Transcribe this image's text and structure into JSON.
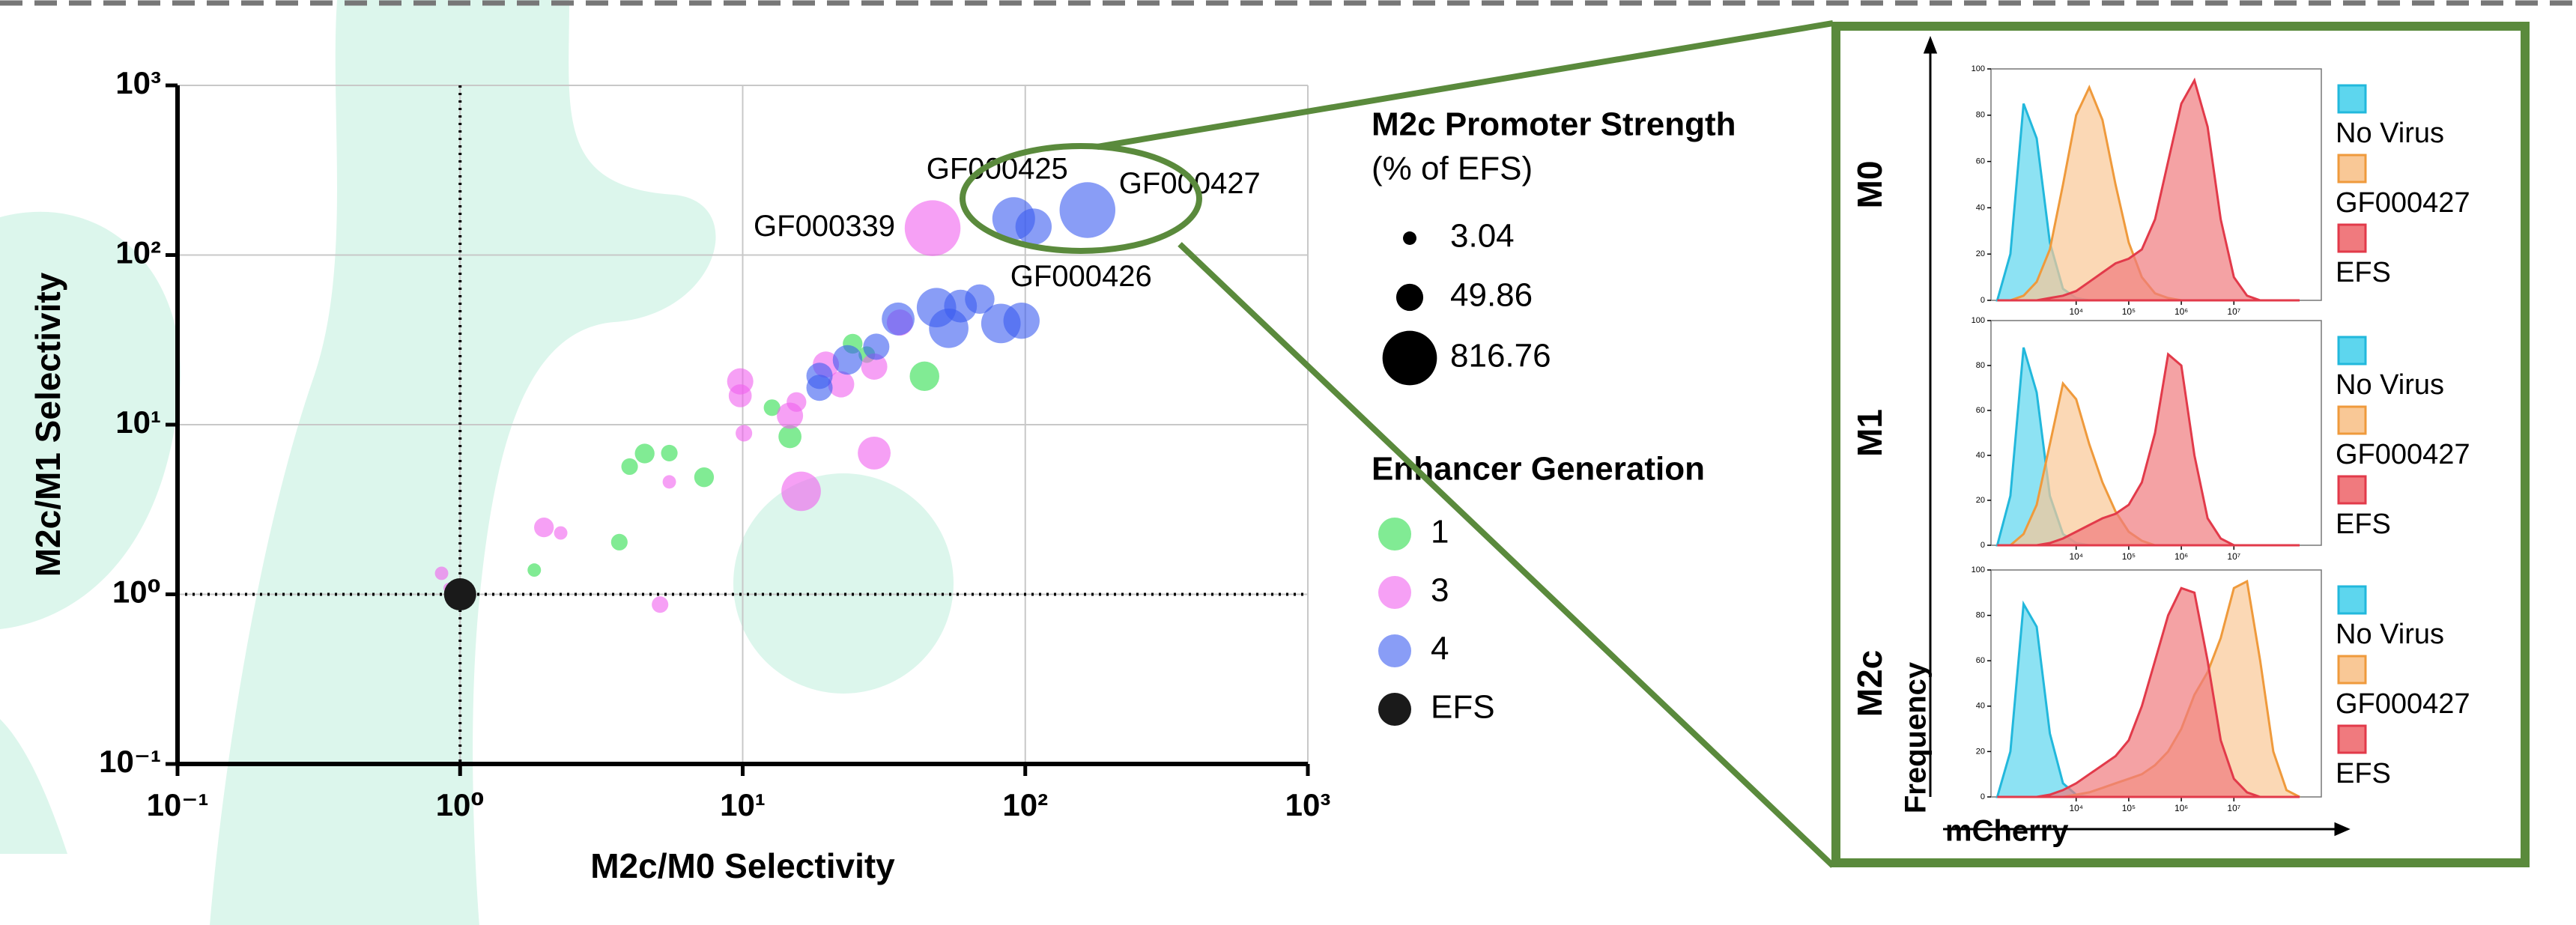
{
  "chart_data": [
    {
      "type": "scatter",
      "xlabel": "M2c/M0 Selectivity",
      "ylabel": "M2c/M1 Selectivity",
      "xscale": "log",
      "yscale": "log",
      "grid": true,
      "xlim": [
        0.1,
        1000
      ],
      "ylim": [
        0.1,
        1000
      ],
      "xticks": [
        {
          "value": 0.1,
          "label": "10⁻¹"
        },
        {
          "value": 1,
          "label": "10⁰"
        },
        {
          "value": 10,
          "label": "10¹"
        },
        {
          "value": 100,
          "label": "10²"
        },
        {
          "value": 1000,
          "label": "10³"
        }
      ],
      "yticks": [
        {
          "value": 0.1,
          "label": "10⁻¹"
        },
        {
          "value": 1,
          "label": "10⁰"
        },
        {
          "value": 10,
          "label": "10¹"
        },
        {
          "value": 100,
          "label": "10²"
        },
        {
          "value": 1000,
          "label": "10³"
        }
      ],
      "ref_lines": {
        "x": 1,
        "y": 1
      },
      "size_legend": {
        "title": "M2c Promoter Strength",
        "subtitle": "(% of EFS)",
        "values": [
          3.04,
          49.86,
          816.76
        ]
      },
      "legend_title": "Enhancer Generation",
      "series": [
        {
          "name": "1",
          "color": "#3ee05a",
          "opacity": 0.65,
          "label_color": "#20a040",
          "x": [
            1.83,
            3.66,
            3.98,
            4.5,
            5.5,
            7.3,
            12.7,
            14.7,
            24.5,
            44,
            27.5
          ],
          "values": [
            1.39,
            2.03,
            5.66,
            6.76,
            6.8,
            4.9,
            12.6,
            8.5,
            30,
            19.3,
            25.9
          ],
          "sizes": [
            3,
            7,
            7,
            14,
            7,
            14,
            7,
            26,
            14,
            71,
            7
          ],
          "labels": [
            null,
            null,
            null,
            null,
            null,
            null,
            null,
            null,
            null,
            null,
            null
          ]
        },
        {
          "name": "3",
          "color": "#f060ee",
          "opacity": 0.6,
          "label_color": "#e040d8",
          "x": [
            0.86,
            0.91,
            1.98,
            2.27,
            5.1,
            5.5,
            10.1,
            9.8,
            9.8,
            14.7,
            15.5,
            16.1,
            22.3,
            19.7,
            29.2,
            29.2,
            36,
            47
          ],
          "values": [
            1.33,
            1.09,
            2.48,
            2.3,
            0.87,
            4.6,
            8.9,
            18,
            14.8,
            11.3,
            13.6,
            4.05,
            17.3,
            22.6,
            22,
            6.8,
            40,
            144
          ],
          "sizes": [
            3,
            1,
            14,
            3,
            7,
            3,
            7,
            44,
            26,
            44,
            14,
            225,
            44,
            44,
            44,
            108,
            44,
            900
          ],
          "labels": [
            null,
            null,
            null,
            null,
            null,
            null,
            null,
            null,
            null,
            null,
            null,
            null,
            null,
            null,
            null,
            null,
            null,
            "GF000339"
          ]
        },
        {
          "name": "4",
          "color": "#3a5cf0",
          "opacity": 0.6,
          "label_color": "#1a3ae0",
          "x": [
            18.7,
            18.7,
            23.5,
            29.7,
            35.5,
            48.5,
            53.6,
            59,
            69,
            82,
            97,
            91,
            107,
            166
          ],
          "values": [
            16.5,
            19.4,
            24.1,
            28.8,
            42,
            49,
            37,
            50,
            55,
            39.5,
            41,
            164,
            147,
            184
          ],
          "sizes": [
            44,
            44,
            71,
            44,
            108,
            225,
            225,
            108,
            71,
            225,
            160,
            310,
            160,
            900
          ],
          "labels": [
            null,
            null,
            null,
            null,
            null,
            null,
            null,
            null,
            null,
            null,
            "GF000426",
            "GF000425",
            null,
            "GF000427"
          ]
        },
        {
          "name": "EFS",
          "color": "#1a1a1a",
          "opacity": 1,
          "label_color": "#1a1a1a",
          "x": [
            1
          ],
          "values": [
            1
          ],
          "sizes": [
            100
          ],
          "labels": [
            null
          ]
        }
      ]
    },
    {
      "type": "area",
      "xlabel": "mCherry",
      "ylabel": "Frequency",
      "xscale": "log",
      "xlim": [
        240,
        460000000
      ],
      "ylim": [
        0,
        100
      ],
      "xticks": [
        {
          "value": 10000,
          "label": "10⁴"
        },
        {
          "value": 100000,
          "label": "10⁵"
        },
        {
          "value": 1000000,
          "label": "10⁶"
        },
        {
          "value": 10000000,
          "label": "10⁷"
        }
      ],
      "yticks": [
        0,
        20,
        40,
        60,
        80,
        100
      ],
      "x": [
        316,
        562,
        1000,
        1778,
        3162,
        5623,
        10000,
        17783,
        31623,
        56234,
        100000,
        177828,
        316228,
        562341,
        1000000,
        1778279,
        3162278,
        5623413,
        10000000,
        17782794,
        31622777,
        56234133,
        100000000,
        177827941
      ],
      "panels": [
        {
          "title": "M0",
          "series": [
            {
              "name": "No Virus",
              "color": "#22b8dc",
              "fill": "#5dd6ee",
              "values": [
                0,
                20,
                85,
                70,
                25,
                5,
                1,
                0,
                0,
                0,
                0,
                0,
                0,
                0,
                0,
                0,
                0,
                0,
                0,
                0,
                0,
                0,
                0,
                0
              ]
            },
            {
              "name": "GF000427",
              "color": "#ef9a3c",
              "fill": "#f9c896",
              "values": [
                0,
                0,
                2,
                8,
                22,
                50,
                80,
                92,
                78,
                50,
                25,
                10,
                3,
                1,
                0,
                0,
                0,
                0,
                0,
                0,
                0,
                0,
                0,
                0
              ]
            },
            {
              "name": "EFS",
              "color": "#e23a4a",
              "fill": "#f07a7e",
              "values": [
                0,
                0,
                0,
                0,
                1,
                2,
                4,
                8,
                12,
                16,
                18,
                22,
                35,
                60,
                85,
                95,
                75,
                35,
                10,
                2,
                0,
                0,
                0,
                0
              ]
            }
          ]
        },
        {
          "title": "M1",
          "series": [
            {
              "name": "No Virus",
              "color": "#22b8dc",
              "fill": "#5dd6ee",
              "values": [
                0,
                22,
                88,
                68,
                22,
                5,
                1,
                0,
                0,
                0,
                0,
                0,
                0,
                0,
                0,
                0,
                0,
                0,
                0,
                0,
                0,
                0,
                0,
                0
              ]
            },
            {
              "name": "GF000427",
              "color": "#ef9a3c",
              "fill": "#f9c896",
              "values": [
                0,
                0,
                5,
                18,
                45,
                72,
                65,
                45,
                28,
                15,
                6,
                2,
                0,
                0,
                0,
                0,
                0,
                0,
                0,
                0,
                0,
                0,
                0,
                0
              ]
            },
            {
              "name": "EFS",
              "color": "#e23a4a",
              "fill": "#f07a7e",
              "values": [
                0,
                0,
                0,
                0,
                1,
                3,
                6,
                9,
                12,
                14,
                18,
                28,
                50,
                85,
                80,
                40,
                12,
                3,
                0,
                0,
                0,
                0,
                0,
                0
              ]
            }
          ]
        },
        {
          "title": "M2c",
          "series": [
            {
              "name": "No Virus",
              "color": "#22b8dc",
              "fill": "#5dd6ee",
              "values": [
                0,
                20,
                85,
                75,
                28,
                6,
                1,
                0,
                0,
                0,
                0,
                0,
                0,
                0,
                0,
                0,
                0,
                0,
                0,
                0,
                0,
                0,
                0,
                0
              ]
            },
            {
              "name": "GF000427",
              "color": "#ef9a3c",
              "fill": "#f9c896",
              "values": [
                0,
                0,
                0,
                0,
                0,
                0,
                1,
                2,
                4,
                6,
                8,
                10,
                14,
                20,
                30,
                45,
                55,
                70,
                92,
                95,
                60,
                20,
                3,
                0
              ]
            },
            {
              "name": "EFS",
              "color": "#e23a4a",
              "fill": "#f07a7e",
              "values": [
                0,
                0,
                0,
                0,
                1,
                3,
                6,
                10,
                14,
                18,
                25,
                40,
                60,
                80,
                92,
                90,
                60,
                25,
                8,
                2,
                0,
                0,
                0,
                0
              ]
            }
          ]
        }
      ]
    }
  ]
}
